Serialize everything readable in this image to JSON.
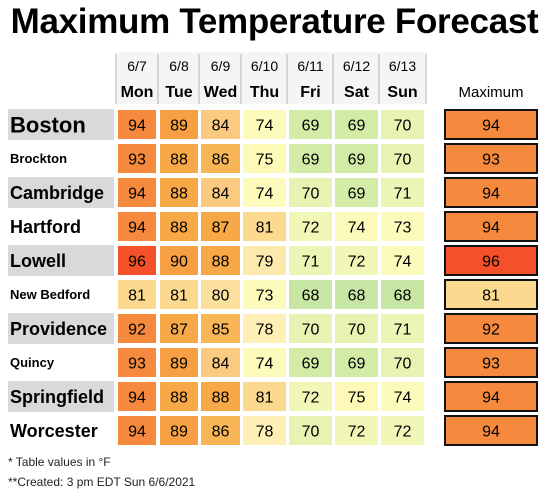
{
  "chart_data": {
    "type": "table",
    "title": "Maximum Temperature Forecast",
    "dates": [
      "6/7",
      "6/8",
      "6/9",
      "6/10",
      "6/11",
      "6/12",
      "6/13"
    ],
    "days": [
      "Mon",
      "Tue",
      "Wed",
      "Thu",
      "Fri",
      "Sat",
      "Sun"
    ],
    "max_header": "Maximum",
    "rows": [
      {
        "city": "Boston",
        "values": [
          94,
          89,
          84,
          74,
          69,
          69,
          70
        ],
        "max": 94
      },
      {
        "city": "Brockton",
        "values": [
          93,
          88,
          86,
          75,
          69,
          69,
          70
        ],
        "max": 93
      },
      {
        "city": "Cambridge",
        "values": [
          94,
          88,
          84,
          74,
          70,
          69,
          71
        ],
        "max": 94
      },
      {
        "city": "Hartford",
        "values": [
          94,
          88,
          87,
          81,
          72,
          74,
          73
        ],
        "max": 94
      },
      {
        "city": "Lowell",
        "values": [
          96,
          90,
          88,
          79,
          71,
          72,
          74
        ],
        "max": 96
      },
      {
        "city": "New Bedford",
        "values": [
          81,
          81,
          80,
          73,
          68,
          68,
          68
        ],
        "max": 81
      },
      {
        "city": "Providence",
        "values": [
          92,
          87,
          85,
          78,
          70,
          70,
          71
        ],
        "max": 92
      },
      {
        "city": "Quincy",
        "values": [
          93,
          89,
          84,
          74,
          69,
          69,
          70
        ],
        "max": 93
      },
      {
        "city": "Springfield",
        "values": [
          94,
          88,
          88,
          81,
          72,
          75,
          74
        ],
        "max": 94
      },
      {
        "city": "Worcester",
        "values": [
          94,
          89,
          86,
          78,
          70,
          72,
          72
        ],
        "max": 94
      }
    ],
    "units_note": "* Table values in °F",
    "created_note": "**Created: 3 pm EDT Sun 6/6/2021",
    "colors": {
      "96": "#f4512a",
      "94": "#f5893e",
      "93": "#f5893e",
      "92": "#f5893e",
      "90": "#f7a043",
      "89": "#f7a043",
      "88": "#f7a947",
      "87": "#f7a947",
      "86": "#f8b556",
      "85": "#f8b556",
      "84": "#f9ca7f",
      "81": "#fbd98f",
      "80": "#fbdf9d",
      "79": "#fce9ac",
      "78": "#fdefb6",
      "75": "#fdfab8",
      "74": "#fdfbbc",
      "73": "#fdfbbc",
      "72": "#f0f7b7",
      "71": "#ebf5b5",
      "70": "#e6f3b3",
      "69": "#d2eca7",
      "68": "#c7e6a4"
    }
  }
}
